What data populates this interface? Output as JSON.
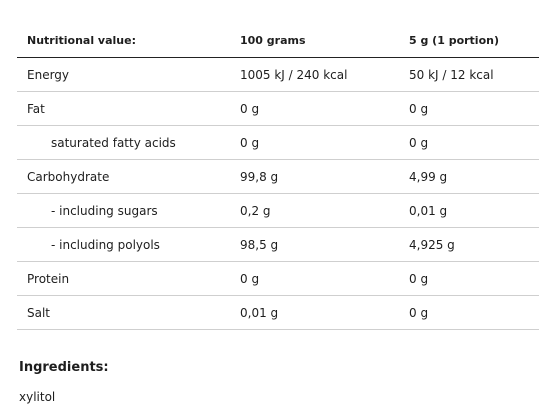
{
  "table": {
    "headers": [
      "Nutritional value:",
      "100 grams",
      "5 g (1 portion)"
    ],
    "rows": [
      {
        "label": "Energy",
        "per100": "1005 kJ / 240 kcal",
        "portion": "50 kJ / 12 kcal"
      },
      {
        "label": "Fat",
        "per100": "0 g",
        "portion": "0 g"
      },
      {
        "label": "saturated fatty acids",
        "per100": "0 g",
        "portion": "0 g"
      },
      {
        "label": "Carbohydrate",
        "per100": "99,8 g",
        "portion": "4,99 g"
      },
      {
        "label": "- including sugars",
        "per100": "0,2 g",
        "portion": "0,01 g"
      },
      {
        "label": "- including polyols",
        "per100": "98,5 g",
        "portion": "4,925 g"
      },
      {
        "label": "Protein",
        "per100": "0 g",
        "portion": "0 g"
      },
      {
        "label": "Salt",
        "per100": "0,01 g",
        "portion": "0 g"
      }
    ]
  },
  "ingredients": {
    "title": "Ingredients:",
    "text": "xylitol"
  }
}
